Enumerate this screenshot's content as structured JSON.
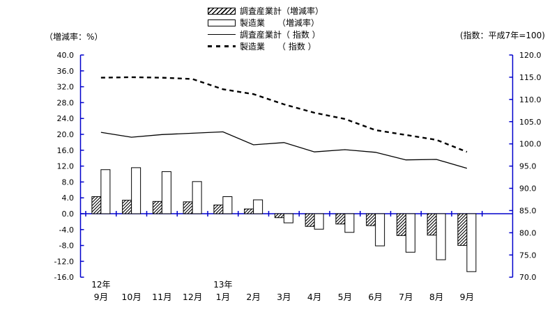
{
  "chart_data": {
    "type": "bar",
    "subtype": "combo-bar-line-dual-axis",
    "categories": [
      "9月",
      "10月",
      "11月",
      "12月",
      "1月",
      "2月",
      "3月",
      "4月",
      "5月",
      "6月",
      "7月",
      "8月",
      "9月"
    ],
    "year_row": [
      {
        "col": 0,
        "label": "12年"
      },
      {
        "col": 4,
        "label": "13年"
      }
    ],
    "bar_series": [
      {
        "name": "調査産業計（増減率）",
        "style": "hatched",
        "axis": "left",
        "values": [
          4.3,
          3.4,
          3.1,
          3.0,
          2.2,
          1.2,
          -1.0,
          -3.2,
          -2.6,
          -3.0,
          -5.5,
          -5.4,
          -8.0
        ]
      },
      {
        "name": "製造業　　（増減率）",
        "style": "white",
        "axis": "left",
        "values": [
          11.1,
          11.6,
          10.6,
          8.1,
          4.3,
          3.5,
          -2.3,
          -3.9,
          -4.7,
          -8.1,
          -9.7,
          -11.6,
          -14.6
        ]
      }
    ],
    "line_series": [
      {
        "name": "調査産業計（ 指数 ）",
        "style": "solid",
        "axis": "right",
        "values": [
          102.6,
          101.5,
          102.1,
          102.4,
          102.7,
          99.8,
          100.3,
          98.2,
          98.7,
          98.1,
          96.4,
          96.5,
          94.5
        ]
      },
      {
        "name": "製造業　　（ 指数 ）",
        "style": "dashed",
        "axis": "right",
        "values": [
          114.9,
          115.0,
          114.9,
          114.6,
          112.3,
          111.2,
          108.9,
          107.0,
          105.6,
          103.1,
          102.0,
          100.9,
          98.2
        ]
      }
    ],
    "left_axis": {
      "title": "（増減率：%）",
      "min": -16,
      "max": 40,
      "tick_step": 4,
      "tick_labels": [
        "40.0",
        "36.0",
        "32.0",
        "28.0",
        "24.0",
        "20.0",
        "16.0",
        "12.0",
        "8.0",
        "4.0",
        "0.0",
        "-4.0",
        "-8.0",
        "-12.0",
        "-16.0"
      ]
    },
    "right_axis": {
      "title": "(指数：平成7年=100)",
      "min": 70,
      "max": 120,
      "tick_step": 5,
      "tick_labels": [
        "120.0",
        "115.0",
        "110.0",
        "105.0",
        "100.0",
        "95.0",
        "90.0",
        "85.0",
        "80.0",
        "75.0",
        "70.0"
      ]
    },
    "grid": "off",
    "legend_position": "top-center",
    "colors": {
      "axis": "#0000cc",
      "bar_stroke": "#000000",
      "line": "#000000",
      "text": "#000000",
      "background": "#ffffff"
    }
  }
}
